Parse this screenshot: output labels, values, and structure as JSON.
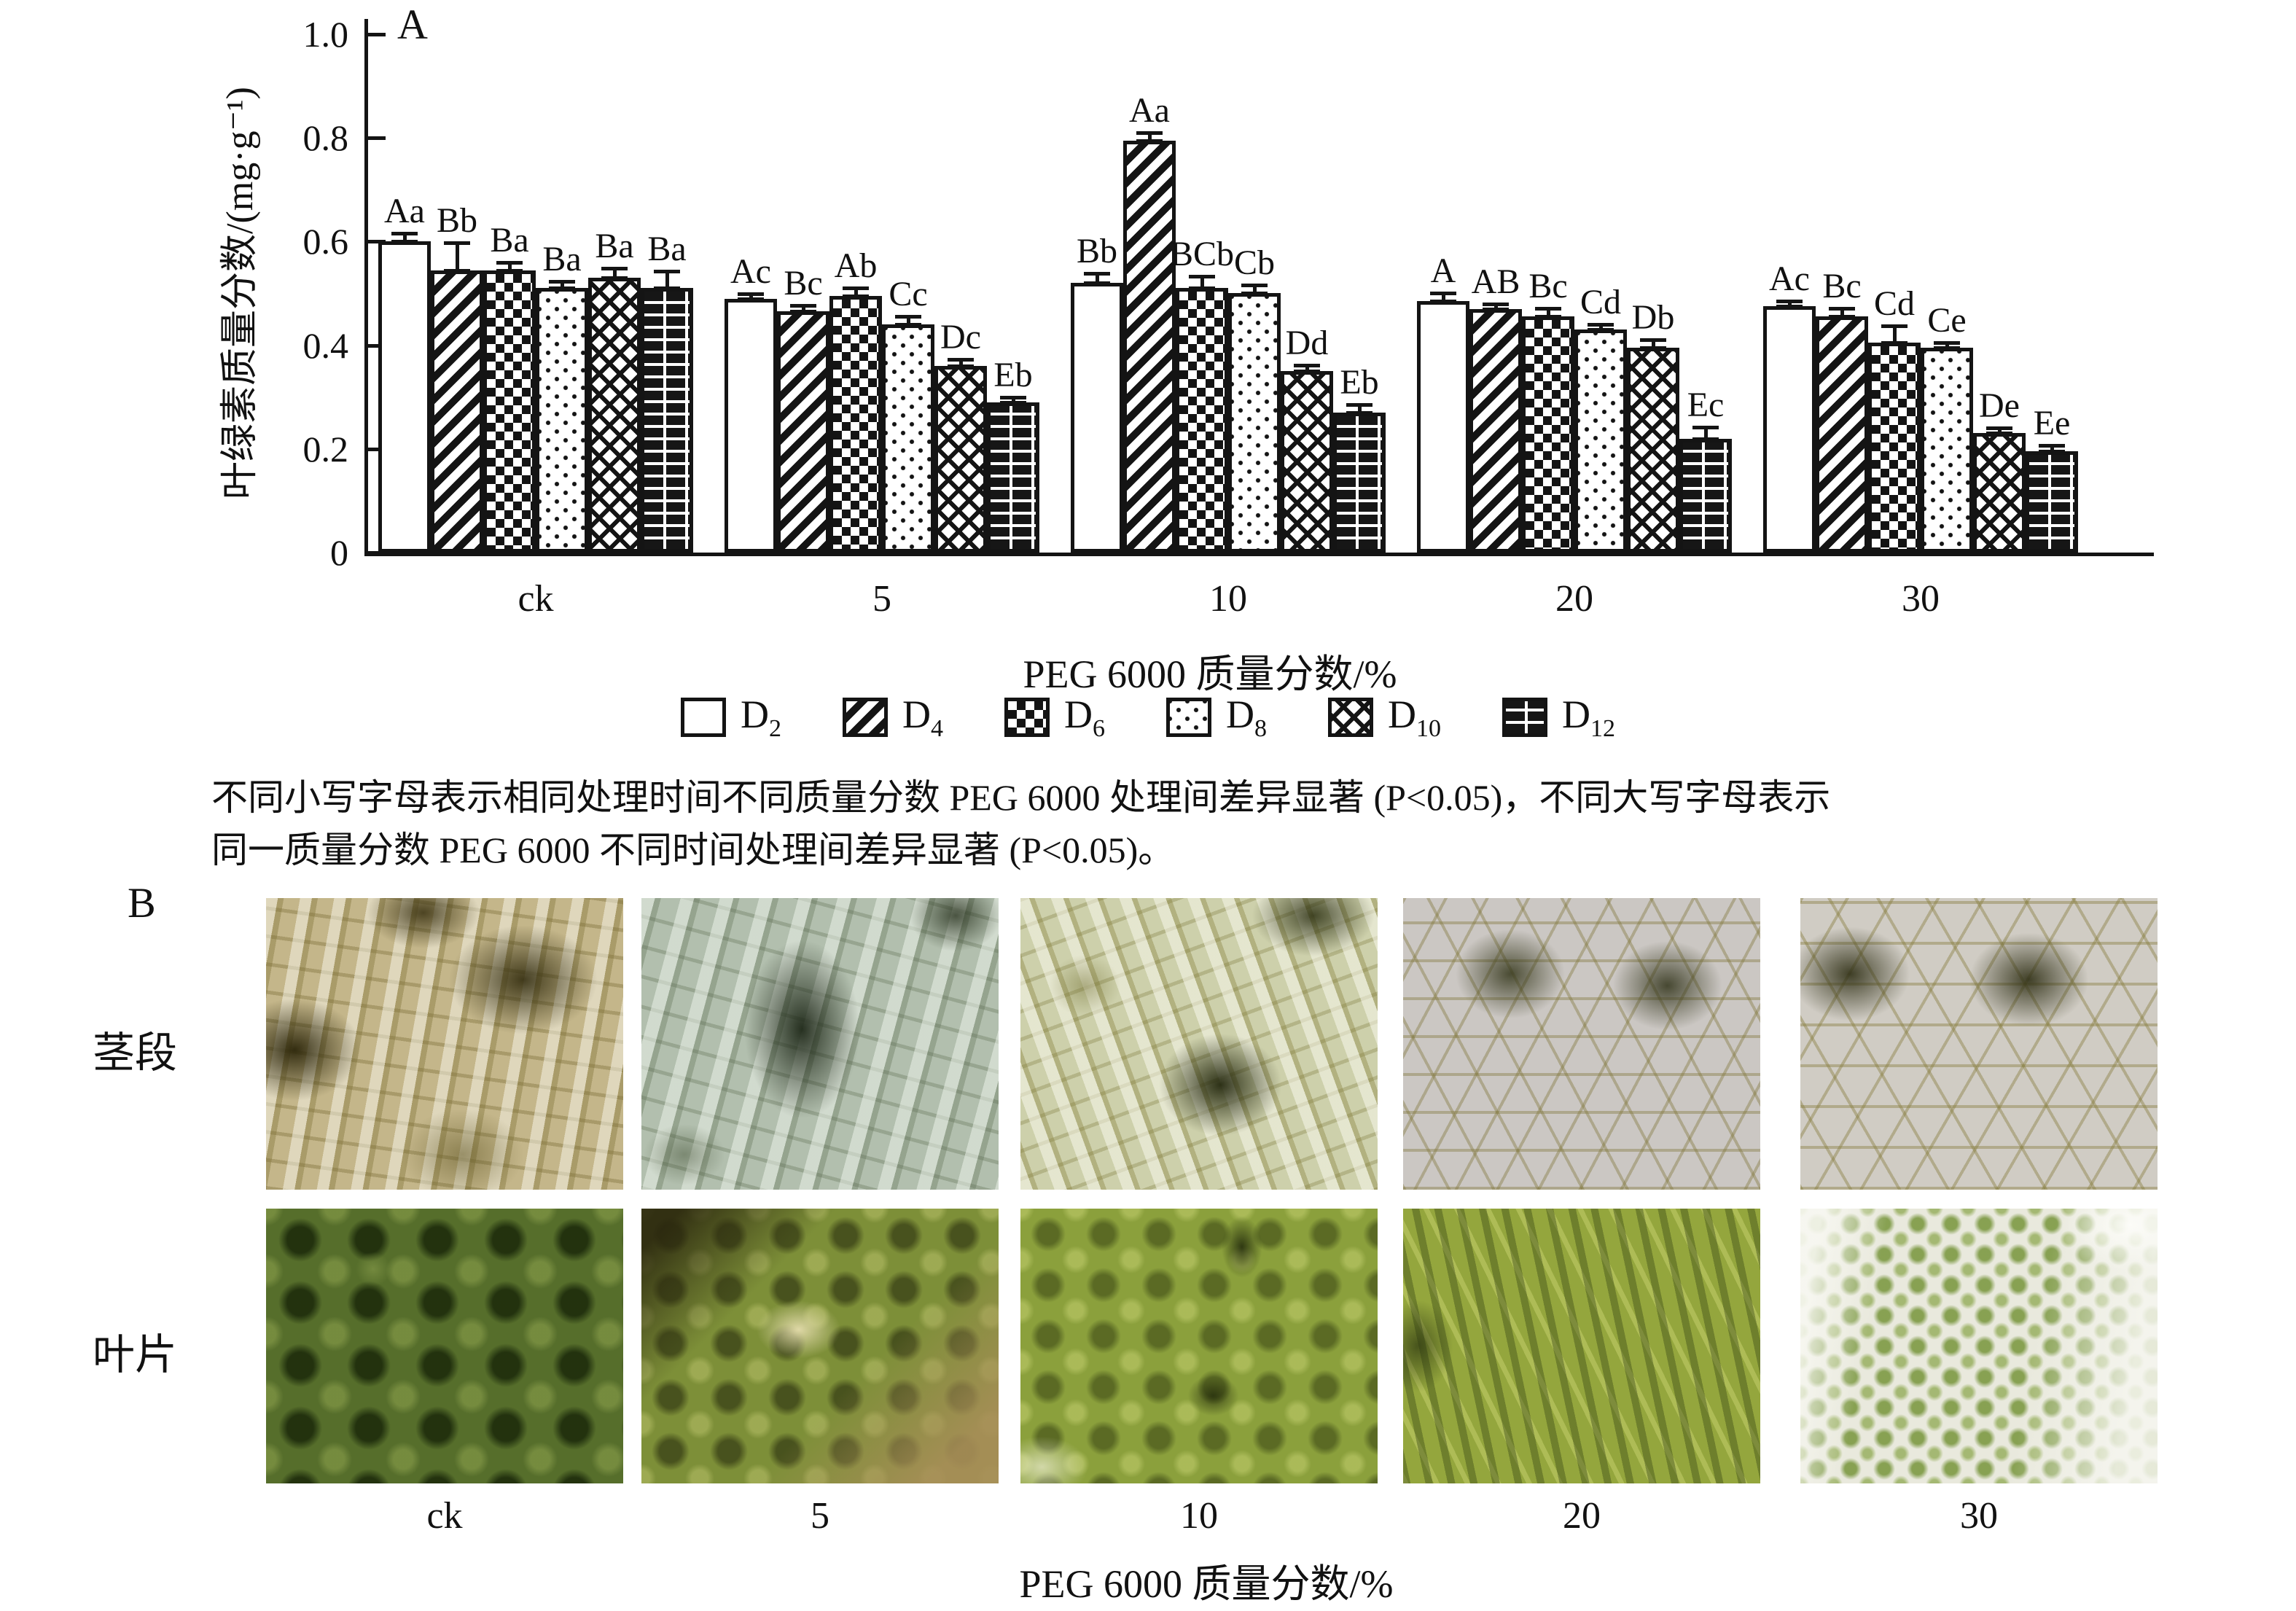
{
  "figure": {
    "panel_a_label": "A",
    "panel_b_label": "B",
    "y_axis_label": "叶绿素质量分数/(mg·g⁻¹)",
    "x_axis_label": "PEG 6000 质量分数/%",
    "y_ticks": [
      "0",
      "0.2",
      "0.4",
      "0.6",
      "0.8",
      "1.0"
    ],
    "categories": [
      "ck",
      "5",
      "10",
      "20",
      "30"
    ],
    "legend": [
      {
        "base": "D",
        "sub": "2"
      },
      {
        "base": "D",
        "sub": "4"
      },
      {
        "base": "D",
        "sub": "6"
      },
      {
        "base": "D",
        "sub": "8"
      },
      {
        "base": "D",
        "sub": "10"
      },
      {
        "base": "D",
        "sub": "12"
      }
    ],
    "caption_lines": [
      "不同小写字母表示相同处理时间不同质量分数 PEG 6000 处理间差异显著 (P<0.05)，不同大写字母表示",
      "同一质量分数 PEG 6000 不同时间处理间差异显著 (P<0.05)。"
    ],
    "panel_b": {
      "row_labels": [
        "茎段",
        "叶片"
      ],
      "col_labels": [
        "ck",
        "5",
        "10",
        "20",
        "30"
      ],
      "x_axis_label": "PEG 6000 质量分数/%"
    }
  },
  "chart_data": {
    "type": "bar",
    "title": "",
    "categories": [
      "ck",
      "5",
      "10",
      "20",
      "30"
    ],
    "series": [
      {
        "name": "D2",
        "pattern": "blank",
        "values": [
          0.6,
          0.49,
          0.52,
          0.485,
          0.475
        ],
        "errors": [
          0.012,
          0.006,
          0.015,
          0.012,
          0.004
        ],
        "letters": [
          "Aa",
          "Ac",
          "Bb",
          "A",
          "Ac"
        ]
      },
      {
        "name": "D4",
        "pattern": "diagonal-stripes",
        "values": [
          0.545,
          0.465,
          0.795,
          0.47,
          0.455
        ],
        "errors": [
          0.05,
          0.008,
          0.012,
          0.004,
          0.012
        ],
        "letters": [
          "Bb",
          "Bc",
          "Aa",
          "AB",
          "Bc"
        ]
      },
      {
        "name": "D6",
        "pattern": "checkerboard",
        "values": [
          0.545,
          0.495,
          0.51,
          0.455,
          0.405
        ],
        "errors": [
          0.012,
          0.012,
          0.02,
          0.012,
          0.03
        ],
        "letters": [
          "Ba",
          "Ab",
          "BCb",
          "Bc",
          "Cd"
        ]
      },
      {
        "name": "D8",
        "pattern": "dots",
        "values": [
          0.51,
          0.44,
          0.5,
          0.43,
          0.395
        ],
        "errors": [
          0.01,
          0.012,
          0.012,
          0.004,
          0.006
        ],
        "letters": [
          "Ba",
          "Cc",
          "Cb",
          "Cd",
          "Ce"
        ]
      },
      {
        "name": "D10",
        "pattern": "diagonal-crosshatch",
        "values": [
          0.53,
          0.36,
          0.35,
          0.395,
          0.23
        ],
        "errors": [
          0.015,
          0.01,
          0.008,
          0.012,
          0.006
        ],
        "letters": [
          "Ba",
          "Dc",
          "Dd",
          "Db",
          "De"
        ]
      },
      {
        "name": "D12",
        "pattern": "brick",
        "values": [
          0.51,
          0.29,
          0.27,
          0.22,
          0.195
        ],
        "errors": [
          0.03,
          0.006,
          0.012,
          0.02,
          0.008
        ],
        "letters": [
          "Ba",
          "Eb",
          "Eb",
          "Ec",
          "Ee"
        ]
      }
    ],
    "ylabel": "叶绿素质量分数/(mg·g⁻¹)",
    "xlabel": "PEG 6000 质量分数/%",
    "ylim": [
      0,
      1.0
    ],
    "grid": false,
    "legend_position": "bottom"
  }
}
